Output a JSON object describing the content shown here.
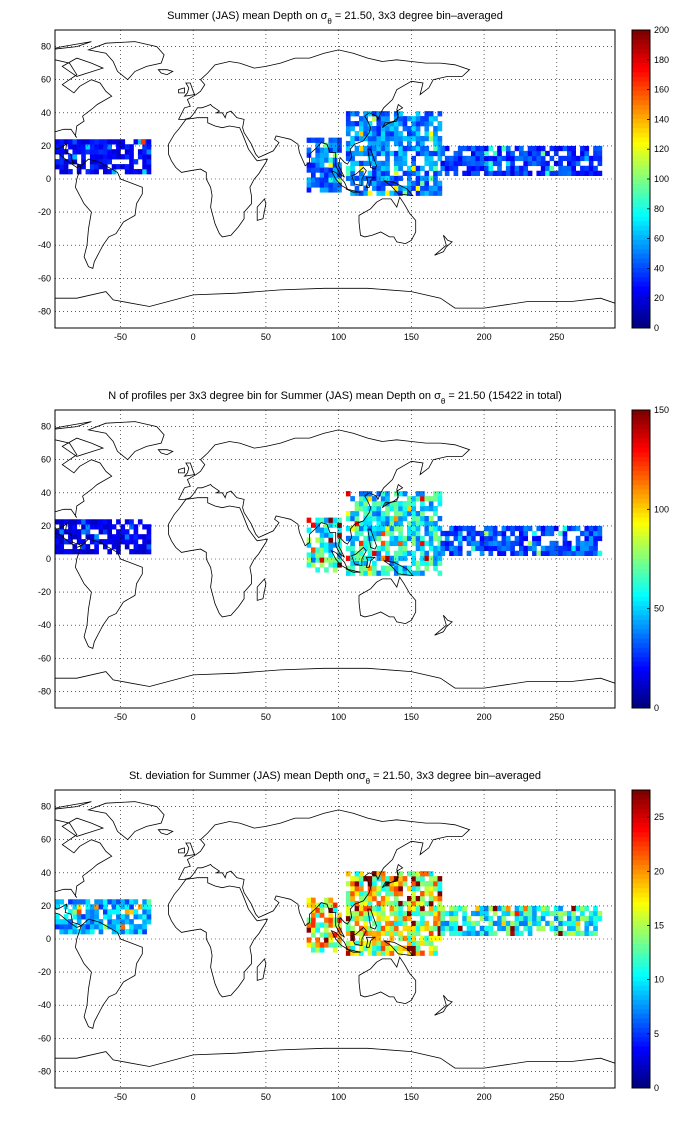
{
  "chart_data": [
    {
      "type": "heatmap",
      "title": "Summer (JAS) mean Depth on σθ = 21.50, 3x3 degree bin–averaged",
      "title_segments": {
        "before": "Summer (JAS) mean Depth on σ",
        "sub": "θ",
        "after": " = 21.50, 3x3 degree bin–averaged"
      },
      "xlim": [
        -95,
        290
      ],
      "ylim": [
        -90,
        90
      ],
      "x_ticks": [
        "-50",
        "0",
        "50",
        "100",
        "150",
        "200",
        "250"
      ],
      "y_ticks": [
        "80",
        "60",
        "40",
        "20",
        "0",
        "-20",
        "-40",
        "-60",
        "-80"
      ],
      "colorbar": {
        "min": 0,
        "max": 200,
        "ticks": [
          "200",
          "180",
          "160",
          "140",
          "120",
          "100",
          "80",
          "60",
          "40",
          "20",
          "0"
        ]
      },
      "grid": true,
      "bin_size_deg": 3,
      "regions": [
        {
          "area": "western tropical Atlantic / Caribbean",
          "lon": [
            -95,
            -30
          ],
          "lat": [
            3,
            24
          ],
          "value": 25
        },
        {
          "area": "Bay of Bengal / Andaman Sea",
          "lon": [
            78,
            100
          ],
          "lat": [
            -8,
            24
          ],
          "value": 45
        },
        {
          "area": "western tropical Pacific / South China Sea",
          "lon": [
            105,
            170
          ],
          "lat": [
            -10,
            40
          ],
          "value": 50
        },
        {
          "area": "central tropical Pacific band",
          "lon": [
            170,
            280
          ],
          "lat": [
            2,
            18
          ],
          "value": 35
        },
        {
          "area": "isolated Atlantic bin",
          "lon": [
            -36,
            -33
          ],
          "lat": [
            21,
            24
          ],
          "value": 190
        }
      ]
    },
    {
      "type": "heatmap",
      "title": "N of profiles per 3x3 degree bin for Summer (JAS) mean Depth on σθ = 21.50 (15422 in total)",
      "title_segments": {
        "before": "N of profiles per 3x3 degree bin for Summer (JAS) mean Depth on σ",
        "sub": "θ",
        "after": " = 21.50 (15422 in total)"
      },
      "total_profiles": 15422,
      "xlim": [
        -95,
        290
      ],
      "ylim": [
        -90,
        90
      ],
      "x_ticks": [
        "-50",
        "0",
        "50",
        "100",
        "150",
        "200",
        "250"
      ],
      "y_ticks": [
        "80",
        "60",
        "40",
        "20",
        "0",
        "-20",
        "-40",
        "-60",
        "-80"
      ],
      "colorbar": {
        "min": 0,
        "max": 150,
        "ticks": [
          "150",
          "100",
          "50",
          "0"
        ]
      },
      "grid": true,
      "bin_size_deg": 3,
      "regions": [
        {
          "area": "western tropical Atlantic / Caribbean",
          "lon": [
            -95,
            -30
          ],
          "lat": [
            3,
            24
          ],
          "value": 15
        },
        {
          "area": "Bay of Bengal / Andaman Sea",
          "lon": [
            78,
            100
          ],
          "lat": [
            -8,
            24
          ],
          "value": 60
        },
        {
          "area": "western tropical Pacific / South China Sea",
          "lon": [
            105,
            170
          ],
          "lat": [
            -10,
            40
          ],
          "value": 55
        },
        {
          "area": "central tropical Pacific band",
          "lon": [
            170,
            280
          ],
          "lat": [
            2,
            18
          ],
          "value": 30
        }
      ]
    },
    {
      "type": "heatmap",
      "title": "St. deviation for Summer (JAS) mean Depth onσθ = 21.50, 3x3 degree bin–averaged",
      "title_segments": {
        "before": "St. deviation for Summer (JAS) mean Depth onσ",
        "sub": "θ",
        "after": " = 21.50, 3x3 degree bin–averaged"
      },
      "xlim": [
        -95,
        290
      ],
      "ylim": [
        -90,
        90
      ],
      "x_ticks": [
        "-50",
        "0",
        "50",
        "100",
        "150",
        "200",
        "250"
      ],
      "y_ticks": [
        "80",
        "60",
        "40",
        "20",
        "0",
        "-20",
        "-40",
        "-60",
        "-80"
      ],
      "colorbar": {
        "min": 0,
        "max": 27.5,
        "ticks": [
          "25",
          "20",
          "15",
          "10",
          "5",
          "0"
        ]
      },
      "grid": true,
      "bin_size_deg": 3,
      "regions": [
        {
          "area": "western tropical Atlantic / Caribbean",
          "lon": [
            -95,
            -30
          ],
          "lat": [
            3,
            24
          ],
          "value": 8
        },
        {
          "area": "Bay of Bengal / Andaman Sea",
          "lon": [
            78,
            100
          ],
          "lat": [
            -8,
            24
          ],
          "value": 17
        },
        {
          "area": "western tropical Pacific / South China Sea",
          "lon": [
            105,
            170
          ],
          "lat": [
            -10,
            40
          ],
          "value": 16
        },
        {
          "area": "central tropical Pacific band",
          "lon": [
            170,
            280
          ],
          "lat": [
            2,
            18
          ],
          "value": 11
        }
      ]
    }
  ]
}
